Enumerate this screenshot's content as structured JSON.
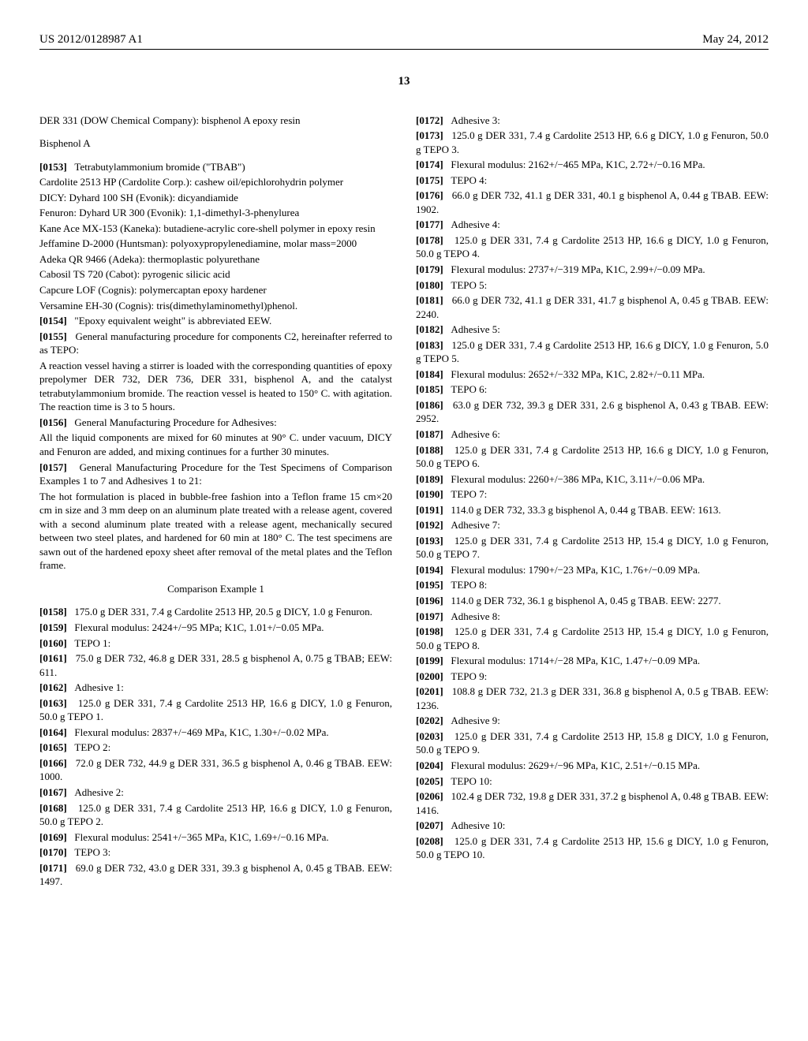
{
  "header": {
    "pubnum": "US 2012/0128987 A1",
    "pubdate": "May 24, 2012",
    "pagenum": "13"
  },
  "left": {
    "l0": "DER 331 (DOW Chemical Company): bisphenol A epoxy resin",
    "hBis": "Bisphenol A",
    "p0153n": "[0153]",
    "p0153": "Tetrabutylammonium bromide (\"TBAB\")",
    "l1": "Cardolite 2513 HP (Cardolite Corp.): cashew oil/epichlorohydrin polymer",
    "l2": "DICY: Dyhard 100 SH (Evonik): dicyandiamide",
    "l3": "Fenuron: Dyhard UR 300 (Evonik): 1,1-dimethyl-3-phenylurea",
    "l4": "Kane Ace MX-153 (Kaneka): butadiene-acrylic core-shell polymer in epoxy resin",
    "l5": "Jeffamine D-2000 (Huntsman): polyoxypropylenediamine, molar mass=2000",
    "l6": "Adeka QR 9466 (Adeka): thermoplastic polyurethane",
    "l7": "Cabosil TS 720 (Cabot): pyrogenic silicic acid",
    "l8": "Capcure LOF (Cognis): polymercaptan epoxy hardener",
    "l9": "Versamine EH-30 (Cognis): tris(dimethylaminomethyl)phenol.",
    "p0154n": "[0154]",
    "p0154": "\"Epoxy equivalent weight\" is abbreviated EEW.",
    "p0155n": "[0155]",
    "p0155": "General manufacturing procedure for components C2, hereinafter referred to as TEPO:",
    "l10": "A reaction vessel having a stirrer is loaded with the corresponding quantities of epoxy prepolymer DER 732, DER 736, DER 331, bisphenol A, and the catalyst tetrabutylammonium bromide. The reaction vessel is heated to 150° C. with agitation. The reaction time is 3 to 5 hours.",
    "p0156n": "[0156]",
    "p0156": "General Manufacturing Procedure for Adhesives:",
    "l11": "All the liquid components are mixed for 60 minutes at 90° C. under vacuum, DICY and Fenuron are added, and mixing continues for a further 30 minutes.",
    "p0157n": "[0157]",
    "p0157": "General Manufacturing Procedure for the Test Specimens of Comparison Examples 1 to 7 and Adhesives 1 to 21:",
    "l12": "The hot formulation is placed in bubble-free fashion into a Teflon frame 15 cm×20 cm in size and 3 mm deep on an aluminum plate treated with a release agent, covered with a second aluminum plate treated with a release agent, mechanically secured between two steel plates, and hardened for 60 min at 180° C. The test specimens are sawn out of the hardened epoxy sheet after removal of the metal plates and the Teflon frame.",
    "hComp": "Comparison Example 1",
    "p0158n": "[0158]",
    "p0158": "175.0 g DER 331, 7.4 g Cardolite 2513 HP, 20.5 g DICY, 1.0 g Fenuron.",
    "p0159n": "[0159]",
    "p0159": "Flexural modulus: 2424+/−95 MPa; K1C, 1.01+/−0.05 MPa.",
    "p0160n": "[0160]",
    "p0160": "TEPO 1:",
    "p0161n": "[0161]",
    "p0161": "75.0 g DER 732, 46.8 g DER 331, 28.5 g bisphenol A, 0.75 g TBAB; EEW: 611.",
    "p0162n": "[0162]",
    "p0162": "Adhesive 1:",
    "p0163n": "[0163]",
    "p0163": "125.0 g DER 331, 7.4 g Cardolite 2513 HP, 16.6 g DICY, 1.0 g Fenuron, 50.0 g TEPO 1.",
    "p0164n": "[0164]",
    "p0164": "Flexural modulus: 2837+/−469 MPa, K1C, 1.30+/−0.02 MPa.",
    "p0165n": "[0165]",
    "p0165": "TEPO 2:",
    "p0166n": "[0166]",
    "p0166": "72.0 g DER 732, 44.9 g DER 331, 36.5 g bisphenol A, 0.46 g TBAB. EEW: 1000.",
    "p0167n": "[0167]",
    "p0167": "Adhesive 2:",
    "p0168n": "[0168]",
    "p0168": "125.0 g DER 331, 7.4 g Cardolite 2513 HP, 16.6 g DICY, 1.0 g Fenuron, 50.0 g TEPO 2."
  },
  "right": {
    "p0169n": "[0169]",
    "p0169": "Flexural modulus: 2541+/−365 MPa, K1C, 1.69+/−0.16 MPa.",
    "p0170n": "[0170]",
    "p0170": "TEPO 3:",
    "p0171n": "[0171]",
    "p0171": "69.0 g DER 732, 43.0 g DER 331, 39.3 g bisphenol A, 0.45 g TBAB. EEW: 1497.",
    "p0172n": "[0172]",
    "p0172": "Adhesive 3:",
    "p0173n": "[0173]",
    "p0173": "125.0 g DER 331, 7.4 g Cardolite 2513 HP, 6.6 g DICY, 1.0 g Fenuron, 50.0 g TEPO 3.",
    "p0174n": "[0174]",
    "p0174": "Flexural modulus: 2162+/−465 MPa, K1C, 2.72+/−0.16 MPa.",
    "p0175n": "[0175]",
    "p0175": "TEPO 4:",
    "p0176n": "[0176]",
    "p0176": "66.0 g DER 732, 41.1 g DER 331, 40.1 g bisphenol A, 0.44 g TBAB. EEW: 1902.",
    "p0177n": "[0177]",
    "p0177": "Adhesive 4:",
    "p0178n": "[0178]",
    "p0178": "125.0 g DER 331, 7.4 g Cardolite 2513 HP, 16.6 g DICY, 1.0 g Fenuron, 50.0 g TEPO 4.",
    "p0179n": "[0179]",
    "p0179": "Flexural modulus: 2737+/−319 MPa, K1C, 2.99+/−0.09 MPa.",
    "p0180n": "[0180]",
    "p0180": "TEPO 5:",
    "p0181n": "[0181]",
    "p0181": "66.0 g DER 732, 41.1 g DER 331, 41.7 g bisphenol A, 0.45 g TBAB. EEW: 2240.",
    "p0182n": "[0182]",
    "p0182": "Adhesive 5:",
    "p0183n": "[0183]",
    "p0183": "125.0 g DER 331, 7.4 g Cardolite 2513 HP, 16.6 g DICY, 1.0 g Fenuron, 5.0 g TEPO 5.",
    "p0184n": "[0184]",
    "p0184": "Flexural modulus: 2652+/−332 MPa, K1C, 2.82+/−0.11 MPa.",
    "p0185n": "[0185]",
    "p0185": "TEPO 6:",
    "p0186n": "[0186]",
    "p0186": "63.0 g DER 732, 39.3 g DER 331, 2.6 g bisphenol A, 0.43 g TBAB. EEW: 2952.",
    "p0187n": "[0187]",
    "p0187": "Adhesive 6:",
    "p0188n": "[0188]",
    "p0188": "125.0 g DER 331, 7.4 g Cardolite 2513 HP, 16.6 g DICY, 1.0 g Fenuron, 50.0 g TEPO 6.",
    "p0189n": "[0189]",
    "p0189": "Flexural modulus: 2260+/−386 MPa, K1C, 3.11+/−0.06 MPa.",
    "p0190n": "[0190]",
    "p0190": "TEPO 7:",
    "p0191n": "[0191]",
    "p0191": "114.0 g DER 732, 33.3 g bisphenol A, 0.44 g TBAB. EEW: 1613.",
    "p0192n": "[0192]",
    "p0192": "Adhesive 7:",
    "p0193n": "[0193]",
    "p0193": "125.0 g DER 331, 7.4 g Cardolite 2513 HP, 15.4 g DICY, 1.0 g Fenuron, 50.0 g TEPO 7.",
    "p0194n": "[0194]",
    "p0194": "Flexural modulus: 1790+/−23 MPa, K1C, 1.76+/−0.09 MPa.",
    "p0195n": "[0195]",
    "p0195": "TEPO 8:",
    "p0196n": "[0196]",
    "p0196": "114.0 g DER 732, 36.1 g bisphenol A, 0.45 g TBAB. EEW: 2277.",
    "p0197n": "[0197]",
    "p0197": "Adhesive 8:",
    "p0198n": "[0198]",
    "p0198": "125.0 g DER 331, 7.4 g Cardolite 2513 HP, 15.4 g DICY, 1.0 g Fenuron, 50.0 g TEPO 8.",
    "p0199n": "[0199]",
    "p0199": "Flexural modulus: 1714+/−28 MPa, K1C, 1.47+/−0.09 MPa.",
    "p0200n": "[0200]",
    "p0200": "TEPO 9:",
    "p0201n": "[0201]",
    "p0201": "108.8 g DER 732, 21.3 g DER 331, 36.8 g bisphenol A, 0.5 g TBAB. EEW: 1236.",
    "p0202n": "[0202]",
    "p0202": "Adhesive 9:",
    "p0203n": "[0203]",
    "p0203": "125.0 g DER 331, 7.4 g Cardolite 2513 HP, 15.8 g DICY, 1.0 g Fenuron, 50.0 g TEPO 9.",
    "p0204n": "[0204]",
    "p0204": "Flexural modulus: 2629+/−96 MPa, K1C, 2.51+/−0.15 MPa.",
    "p0205n": "[0205]",
    "p0205": "TEPO 10:",
    "p0206n": "[0206]",
    "p0206": "102.4 g DER 732, 19.8 g DER 331, 37.2 g bisphenol A, 0.48 g TBAB. EEW: 1416.",
    "p0207n": "[0207]",
    "p0207": "Adhesive 10:",
    "p0208n": "[0208]",
    "p0208": "125.0 g DER 331, 7.4 g Cardolite 2513 HP, 15.6 g DICY, 1.0 g Fenuron, 50.0 g TEPO 10."
  }
}
